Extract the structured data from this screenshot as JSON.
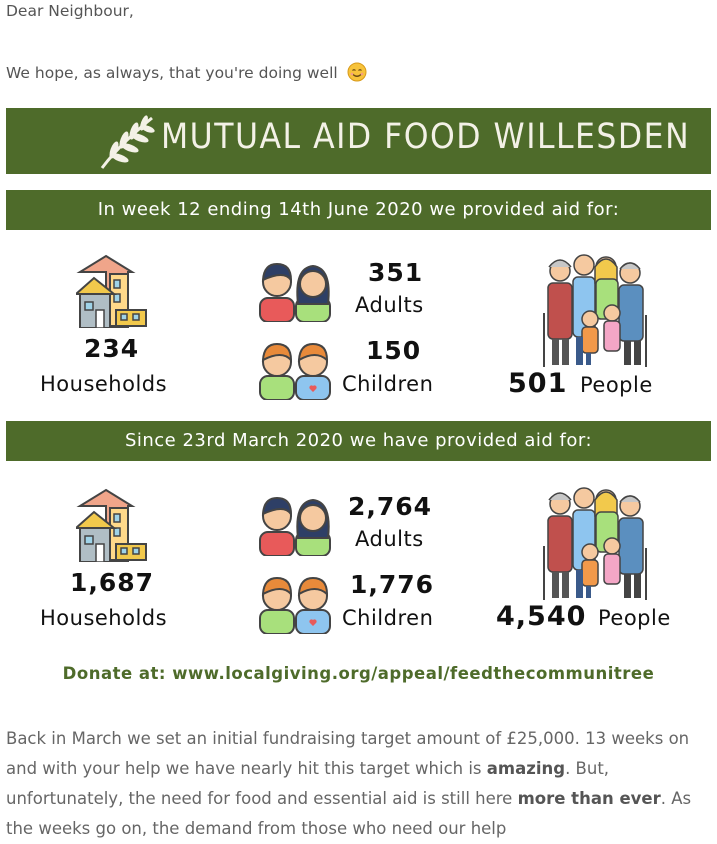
{
  "letter": {
    "greeting": "Dear Neighbour,",
    "hope": "We hope, as always, that you're doing well",
    "emoji": "smiling-face-icon"
  },
  "banner": {
    "title": "MUTUAL AID FOOD WILLESDEN",
    "icon": "olive-branch-icon",
    "color": "#4e6b2a"
  },
  "week": {
    "heading": "In week 12 ending 14th June 2020 we provided aid for:",
    "households": "234",
    "households_label": "Households",
    "adults": "351",
    "adults_label": "Adults",
    "children": "150",
    "children_label": "Children",
    "people": "501",
    "people_label": "People"
  },
  "total": {
    "heading": "Since 23rd March 2020 we have provided aid for:",
    "households": "1,687",
    "households_label": "Households",
    "adults": "2,764",
    "adults_label": "Adults",
    "children": "1,776",
    "children_label": "Children",
    "people": "4,540",
    "people_label": "People"
  },
  "donate": "Donate at: www.localgiving.org/appeal/feedthecommunitree",
  "body": {
    "p1": "Back in March we set an initial fundraising target amount of £25,000. 13 weeks on and with your help we have nearly hit this target which is ",
    "p1_bold1": "amazing",
    "p2": ". But, unfortunately, the need for food and essential aid is still here ",
    "p2_bold": "more than ever",
    "p3": ". As the weeks go on, the demand from those who need our help"
  }
}
